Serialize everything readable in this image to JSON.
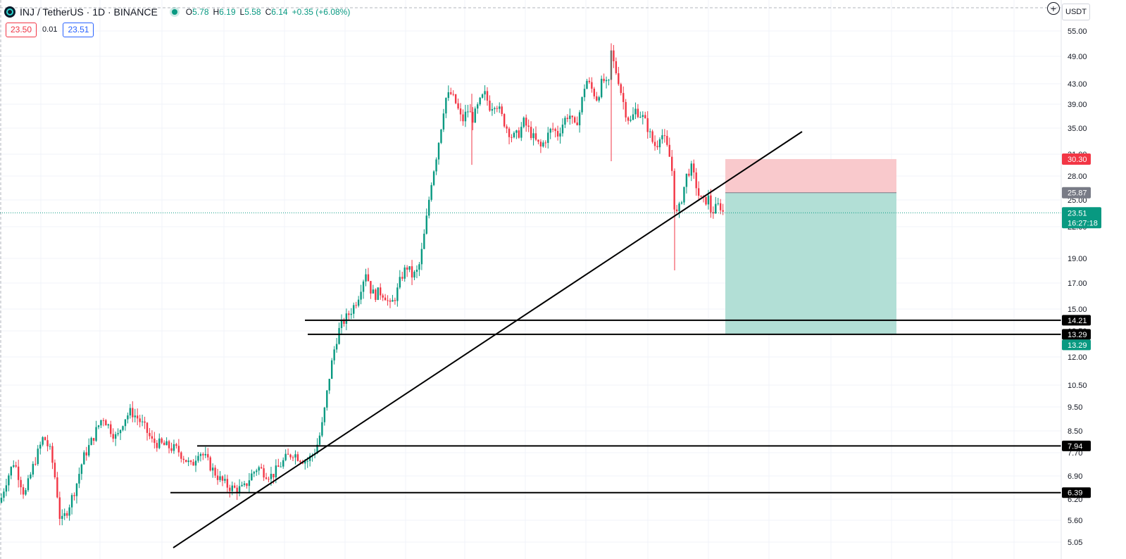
{
  "header": {
    "symbol": "INJ / TetherUS · 1D · BINANCE",
    "o_label": "O",
    "o_value": "5.78",
    "h_label": "H",
    "h_value": "6.19",
    "l_label": "L",
    "l_value": "5.58",
    "c_label": "C",
    "c_value": "6.14",
    "change": "+0.35 (+6.08%)"
  },
  "quote": {
    "sell": "23.50",
    "spread": "0.01",
    "buy": "23.51"
  },
  "currency": "USDT",
  "plus_icon": "+",
  "colors": {
    "up": "#089981",
    "down": "#f23645",
    "stop_zone": "#f9c9cc",
    "target_zone": "#b2dfd6",
    "lines": "#000000"
  },
  "chart_data": {
    "type": "candlestick",
    "scale": "log",
    "ylim": [
      5.05,
      58
    ],
    "y_ticks": [
      "55.00",
      "49.00",
      "43.00",
      "39.00",
      "35.00",
      "31.00",
      "28.00",
      "25.00",
      "22.00",
      "19.00",
      "17.00",
      "15.00",
      "13.50",
      "12.00",
      "10.50",
      "9.50",
      "8.50",
      "7.70",
      "6.90",
      "6.20",
      "5.60",
      "5.05"
    ],
    "price_series": [
      [
        0,
        6.1
      ],
      [
        8,
        6.7
      ],
      [
        20,
        7.4
      ],
      [
        35,
        6.3
      ],
      [
        48,
        7.3
      ],
      [
        62,
        8.3
      ],
      [
        72,
        7.7
      ],
      [
        80,
        6.6
      ],
      [
        86,
        5.5
      ],
      [
        96,
        5.9
      ],
      [
        108,
        6.6
      ],
      [
        118,
        7.5
      ],
      [
        128,
        8.0
      ],
      [
        138,
        8.6
      ],
      [
        146,
        9.1
      ],
      [
        156,
        8.6
      ],
      [
        166,
        8.2
      ],
      [
        176,
        9.0
      ],
      [
        186,
        9.3
      ],
      [
        196,
        9.0
      ],
      [
        206,
        8.6
      ],
      [
        216,
        8.1
      ],
      [
        228,
        8.0
      ],
      [
        240,
        7.9
      ],
      [
        252,
        7.8
      ],
      [
        262,
        7.5
      ],
      [
        272,
        7.2
      ],
      [
        282,
        7.8
      ],
      [
        292,
        7.5
      ],
      [
        302,
        7.1
      ],
      [
        312,
        6.8
      ],
      [
        322,
        6.6
      ],
      [
        332,
        6.5
      ],
      [
        346,
        6.5
      ],
      [
        356,
        6.9
      ],
      [
        366,
        7.2
      ],
      [
        376,
        7.0
      ],
      [
        386,
        6.9
      ],
      [
        396,
        7.2
      ],
      [
        406,
        7.5
      ],
      [
        416,
        7.7
      ],
      [
        426,
        7.5
      ],
      [
        436,
        7.4
      ],
      [
        446,
        7.7
      ],
      [
        452,
        8.1
      ],
      [
        458,
        8.8
      ],
      [
        462,
        9.6
      ],
      [
        468,
        11.0
      ],
      [
        474,
        12.3
      ],
      [
        480,
        13.4
      ],
      [
        486,
        14.0
      ],
      [
        492,
        14.4
      ],
      [
        500,
        15.0
      ],
      [
        508,
        15.8
      ],
      [
        514,
        17.0
      ],
      [
        520,
        18.0
      ],
      [
        526,
        16.5
      ],
      [
        532,
        16.0
      ],
      [
        538,
        16.3
      ],
      [
        546,
        16.1
      ],
      [
        554,
        15.2
      ],
      [
        562,
        16.0
      ],
      [
        570,
        17.5
      ],
      [
        578,
        18.3
      ],
      [
        586,
        17.5
      ],
      [
        594,
        18.0
      ],
      [
        600,
        20.0
      ],
      [
        606,
        23.0
      ],
      [
        612,
        27.0
      ],
      [
        620,
        31.0
      ],
      [
        626,
        35.0
      ],
      [
        632,
        40.0
      ],
      [
        640,
        41.0
      ],
      [
        648,
        39.0
      ],
      [
        656,
        36.0
      ],
      [
        664,
        38.0
      ],
      [
        672,
        36.5
      ],
      [
        680,
        39.0
      ],
      [
        688,
        41.0
      ],
      [
        696,
        38.5
      ],
      [
        704,
        39.5
      ],
      [
        712,
        37.0
      ],
      [
        720,
        35.0
      ],
      [
        728,
        33.5
      ],
      [
        736,
        34.0
      ],
      [
        744,
        36.0
      ],
      [
        752,
        34.5
      ],
      [
        760,
        33.0
      ],
      [
        768,
        32.0
      ],
      [
        776,
        33.5
      ],
      [
        784,
        35.0
      ],
      [
        792,
        34.0
      ],
      [
        800,
        36.0
      ],
      [
        808,
        37.5
      ],
      [
        816,
        35.0
      ],
      [
        824,
        38.0
      ],
      [
        832,
        44.0
      ],
      [
        840,
        42.0
      ],
      [
        848,
        40.0
      ],
      [
        856,
        44.0
      ],
      [
        864,
        42.0
      ],
      [
        868,
        50.0
      ],
      [
        872,
        47.0
      ],
      [
        878,
        44.0
      ],
      [
        884,
        40.0
      ],
      [
        890,
        37.0
      ],
      [
        896,
        36.0
      ],
      [
        902,
        38.0
      ],
      [
        908,
        37.5
      ],
      [
        914,
        36.5
      ],
      [
        920,
        35.0
      ],
      [
        926,
        33.0
      ],
      [
        932,
        32.0
      ],
      [
        938,
        34.5
      ],
      [
        944,
        33.0
      ],
      [
        950,
        31.0
      ],
      [
        954,
        29.0
      ],
      [
        958,
        24.0
      ],
      [
        962,
        23.2
      ],
      [
        966,
        24.5
      ],
      [
        970,
        26.0
      ],
      [
        976,
        28.5
      ],
      [
        982,
        29.0
      ],
      [
        988,
        27.0
      ],
      [
        994,
        25.0
      ],
      [
        1000,
        24.8
      ],
      [
        1006,
        25.2
      ],
      [
        1010,
        23.5
      ],
      [
        1016,
        24.0
      ],
      [
        1022,
        24.5
      ],
      [
        1026,
        23.6
      ],
      [
        1030,
        23.51
      ]
    ],
    "horizontal_levels": [
      {
        "price": 14.21,
        "label": "14.21"
      },
      {
        "price": 13.29,
        "label": "13.29"
      },
      {
        "price": 7.94,
        "label": "7.94"
      },
      {
        "price": 6.39,
        "label": "6.39"
      }
    ],
    "last_price": {
      "price": 23.51,
      "label": "23.51",
      "countdown": "16:27:18"
    },
    "position": {
      "stop": 30.3,
      "stop_label": "30.30",
      "entry": 25.87,
      "entry_label": "25.87",
      "target": 13.29,
      "target_label": "13.29"
    }
  }
}
